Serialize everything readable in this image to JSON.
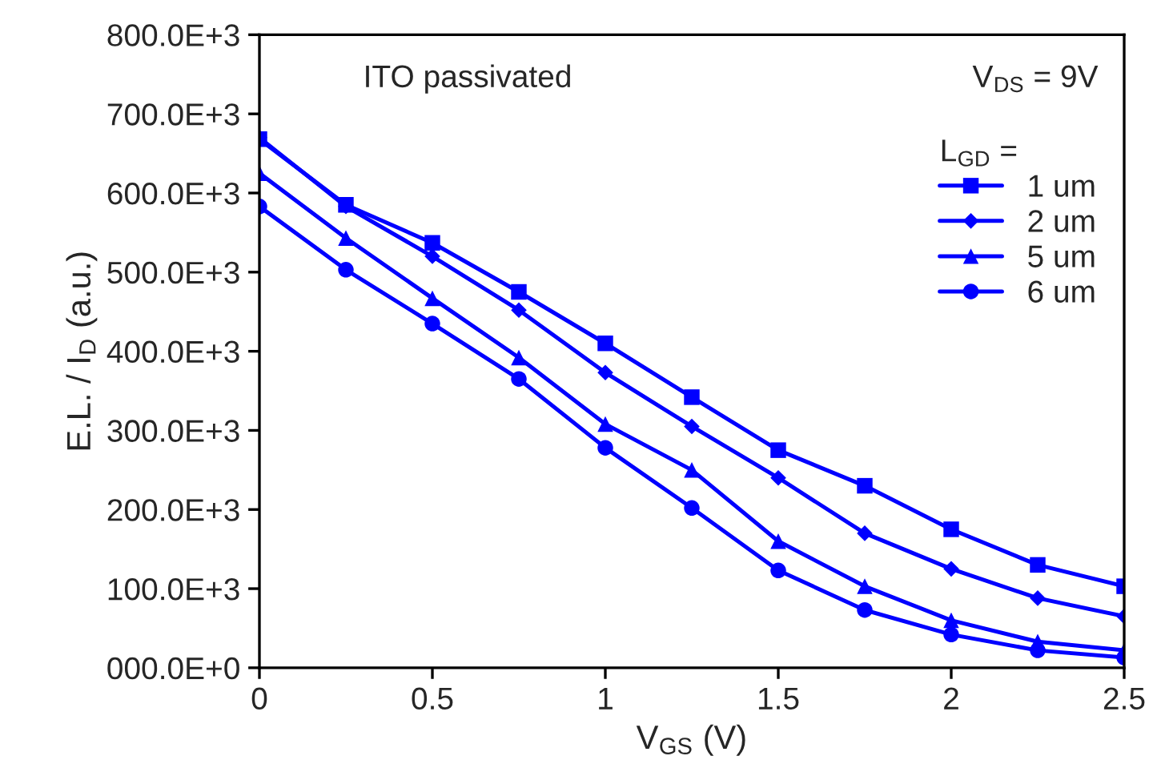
{
  "chart_data": {
    "type": "line",
    "xlabel": "V$_{GS}$ (V)",
    "ylabel": "E.L. / I$_{D}$ (a.u.)",
    "annotations": [
      "ITO passivated",
      "V$_{DS}$ = 9V"
    ],
    "legend_title": "L$_{GD}$ =",
    "legend": "top right",
    "grid": false,
    "line_style": "solid",
    "x": [
      0,
      0.25,
      0.5,
      0.75,
      1,
      1.25,
      1.5,
      1.75,
      2,
      2.25,
      2.5
    ],
    "series": [
      {
        "name": "1 um",
        "color": "#0000ff",
        "marker": "square",
        "values": [
          668000,
          585000,
          537000,
          475000,
          410000,
          342000,
          275000,
          230000,
          175000,
          130000,
          103000
        ]
      },
      {
        "name": "2 um",
        "color": "#0000ff",
        "marker": "diamond",
        "values": [
          670000,
          583000,
          520000,
          452000,
          373000,
          305000,
          240000,
          170000,
          125000,
          88000,
          65000
        ]
      },
      {
        "name": "5 um",
        "color": "#0000ff",
        "marker": "triangle",
        "values": [
          625000,
          543000,
          467000,
          392000,
          308000,
          250000,
          160000,
          103000,
          60000,
          33000,
          22000
        ]
      },
      {
        "name": "6 um",
        "color": "#0000ff",
        "marker": "circle",
        "values": [
          583000,
          503000,
          435000,
          365000,
          278000,
          202000,
          123000,
          73000,
          42000,
          22000,
          13000
        ]
      }
    ],
    "xlim": [
      0,
      2.5
    ],
    "xticks": [
      0,
      0.5,
      1,
      1.5,
      2,
      2.5
    ],
    "ylim": [
      0,
      800000
    ],
    "yticks": [
      {
        "value": 0,
        "label": "000.0E+0"
      },
      {
        "value": 100000,
        "label": "100.0E+3"
      },
      {
        "value": 200000,
        "label": "200.0E+3"
      },
      {
        "value": 300000,
        "label": "300.0E+3"
      },
      {
        "value": 400000,
        "label": "400.0E+3"
      },
      {
        "value": 500000,
        "label": "500.0E+3"
      },
      {
        "value": 600000,
        "label": "600.0E+3"
      },
      {
        "value": 700000,
        "label": "700.0E+3"
      },
      {
        "value": 800000,
        "label": "800.0E+3"
      }
    ]
  }
}
